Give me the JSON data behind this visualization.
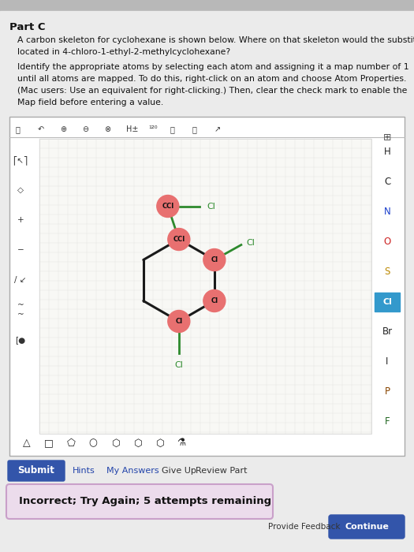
{
  "bg_color": "#e0dede",
  "page_bg": "#ebebeb",
  "title_text": "Part C",
  "question_line1": "A carbon skeleton for cyclohexane is shown below. Where on that skeleton would the substituents b",
  "question_line2": "located in 4-chloro-1-ethyl-2-methylcyclohexane?",
  "instr_line1": "Identify the appropriate atoms by selecting each atom and assigning it a map number of 1",
  "instr_line2": "until all atoms are mapped. To do this, right-click on an atom and choose Atom Properties.",
  "instr_line3": "(Mac users: Use an equivalent for right-clicking.) Then, clear the check mark to enable the",
  "instr_line4": "Map field before entering a value.",
  "submit_color": "#3355aa",
  "incorrect_bg": "#ecdcec",
  "incorrect_border": "#c9a0c9",
  "incorrect_text": "Incorrect; Try Again; 5 attempts remaining",
  "ring_color": "#1a1a1a",
  "bond_color": "#2d8a2d",
  "highlight_color": "#e87070",
  "right_colors": {
    "H": "#222222",
    "C": "#222222",
    "N": "#1a3fcc",
    "O": "#cc2222",
    "S": "#bb8800",
    "Cl": "#ffffff",
    "Br": "#222222",
    "I": "#222222",
    "P": "#884400",
    "F": "#226622"
  },
  "cl_bg": "#3399cc",
  "provide_feedback_text": "Provide Feedback",
  "continue_text": "Continue"
}
